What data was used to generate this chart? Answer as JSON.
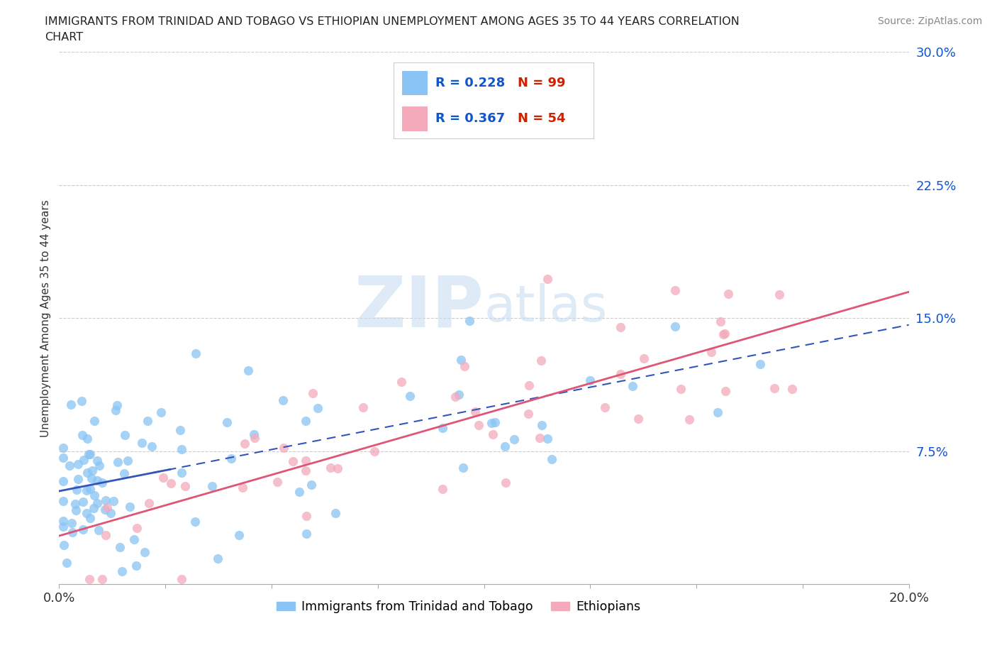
{
  "title_line1": "IMMIGRANTS FROM TRINIDAD AND TOBAGO VS ETHIOPIAN UNEMPLOYMENT AMONG AGES 35 TO 44 YEARS CORRELATION",
  "title_line2": "CHART",
  "source": "Source: ZipAtlas.com",
  "ylabel": "Unemployment Among Ages 35 to 44 years",
  "xlim": [
    0.0,
    0.2
  ],
  "ylim": [
    0.0,
    0.3
  ],
  "xticks": [
    0.0,
    0.025,
    0.05,
    0.075,
    0.1,
    0.125,
    0.15,
    0.175,
    0.2
  ],
  "ytick_positions": [
    0.0,
    0.075,
    0.15,
    0.225,
    0.3
  ],
  "yticklabels_right": [
    "",
    "7.5%",
    "15.0%",
    "22.5%",
    "30.0%"
  ],
  "blue_color": "#89C4F4",
  "pink_color": "#F4AABB",
  "blue_line_color": "#3355BB",
  "pink_line_color": "#E05575",
  "R_blue": 0.228,
  "N_blue": 99,
  "R_pink": 0.367,
  "N_pink": 54,
  "legend_R_color": "#1155CC",
  "legend_N_color": "#CC2200",
  "watermark_ZIP": "ZIP",
  "watermark_atlas": "atlas",
  "background_color": "#ffffff",
  "grid_color": "#cccccc",
  "blue_trend_intercept": 0.052,
  "blue_trend_slope": 0.46,
  "pink_trend_intercept": 0.038,
  "pink_trend_slope": 0.52
}
